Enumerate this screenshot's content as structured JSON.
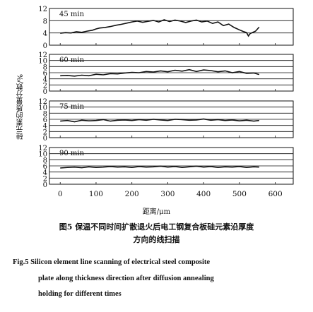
{
  "figure": {
    "ylabel": "硅元素的质量分数/%",
    "xlabel": "距离/μm",
    "caption_cn_line1": "图5  保温不同时间扩散退火后电工钢复合板硅元素沿厚度",
    "caption_cn_line2": "方向的线扫描",
    "caption_en_line1": "Fig.5   Silicon element line scanning of electrical steel composite",
    "caption_en_line2": "plate along thickness direction after diffusion annealing",
    "caption_en_line3": "holding for different times"
  },
  "chart_data": [
    {
      "type": "line",
      "title": "45 min",
      "x_ticks": [
        0,
        100,
        200,
        300,
        400,
        500,
        600
      ],
      "y_ticks": [
        0,
        4,
        8,
        12
      ],
      "xlim": [
        -30,
        650
      ],
      "ylim": [
        0,
        12
      ],
      "x": [
        0,
        15,
        30,
        45,
        60,
        75,
        90,
        100,
        110,
        125,
        140,
        155,
        170,
        185,
        200,
        215,
        230,
        245,
        260,
        275,
        290,
        305,
        320,
        335,
        350,
        365,
        380,
        395,
        410,
        425,
        440,
        455,
        470,
        485,
        500,
        510,
        520,
        525,
        530,
        545,
        555
      ],
      "values": [
        3.9,
        4.1,
        4.0,
        4.4,
        4.2,
        4.6,
        4.9,
        5.3,
        5.6,
        5.8,
        6.1,
        6.5,
        6.8,
        7.2,
        7.6,
        7.9,
        7.5,
        7.8,
        8.1,
        7.6,
        8.3,
        7.7,
        8.2,
        7.9,
        7.4,
        7.9,
        8.2,
        7.6,
        7.9,
        7.1,
        7.6,
        6.4,
        6.9,
        5.8,
        5.0,
        4.5,
        4.1,
        3.0,
        3.8,
        4.6,
        5.9
      ]
    },
    {
      "type": "line",
      "title": "60 min",
      "x_ticks": [
        0,
        100,
        200,
        300,
        400,
        500,
        600
      ],
      "y_ticks": [
        0,
        2,
        4,
        6,
        8,
        10,
        12
      ],
      "xlim": [
        -30,
        650
      ],
      "ylim": [
        0,
        12
      ],
      "x": [
        0,
        20,
        40,
        60,
        80,
        100,
        120,
        140,
        160,
        180,
        200,
        220,
        240,
        260,
        280,
        300,
        320,
        340,
        360,
        380,
        400,
        420,
        440,
        460,
        480,
        500,
        520,
        540,
        555
      ],
      "values": [
        5.0,
        5.1,
        4.9,
        5.2,
        5.0,
        5.5,
        5.3,
        5.7,
        5.6,
        5.9,
        6.1,
        6.0,
        6.4,
        6.2,
        6.6,
        6.3,
        6.8,
        6.5,
        7.0,
        6.4,
        6.9,
        6.7,
        6.3,
        6.6,
        6.0,
        6.4,
        5.8,
        5.9,
        5.4
      ]
    },
    {
      "type": "line",
      "title": "75 min",
      "x_ticks": [
        0,
        100,
        200,
        300,
        400,
        500,
        600
      ],
      "y_ticks": [
        0,
        2,
        4,
        6,
        8,
        10,
        12
      ],
      "xlim": [
        -30,
        650
      ],
      "ylim": [
        0,
        12
      ],
      "x": [
        0,
        20,
        40,
        60,
        80,
        100,
        120,
        140,
        160,
        180,
        200,
        220,
        240,
        260,
        280,
        300,
        320,
        340,
        360,
        380,
        400,
        420,
        440,
        460,
        480,
        500,
        520,
        540,
        555
      ],
      "values": [
        5.4,
        5.6,
        5.2,
        5.7,
        5.5,
        5.6,
        5.9,
        5.4,
        5.7,
        5.8,
        5.6,
        5.9,
        5.7,
        6.0,
        5.8,
        5.6,
        6.0,
        5.9,
        5.7,
        5.8,
        6.1,
        5.7,
        5.9,
        5.6,
        5.8,
        5.5,
        5.7,
        5.4,
        5.6
      ]
    },
    {
      "type": "line",
      "title": "90 min",
      "x_ticks": [
        0,
        100,
        200,
        300,
        400,
        500,
        600
      ],
      "y_ticks": [
        0,
        2,
        4,
        6,
        8,
        10,
        12
      ],
      "xlim": [
        -30,
        650
      ],
      "ylim": [
        0,
        12
      ],
      "x": [
        0,
        20,
        40,
        60,
        80,
        100,
        120,
        140,
        160,
        180,
        200,
        220,
        240,
        260,
        280,
        300,
        320,
        340,
        360,
        380,
        400,
        420,
        440,
        460,
        480,
        500,
        520,
        540,
        555
      ],
      "values": [
        5.3,
        5.5,
        5.6,
        5.4,
        5.7,
        5.5,
        5.6,
        5.8,
        5.6,
        5.7,
        5.5,
        5.8,
        5.6,
        5.7,
        5.9,
        5.6,
        5.8,
        5.5,
        5.7,
        5.9,
        5.6,
        5.8,
        5.5,
        5.7,
        5.6,
        5.8,
        5.5,
        5.7,
        5.6
      ]
    }
  ]
}
